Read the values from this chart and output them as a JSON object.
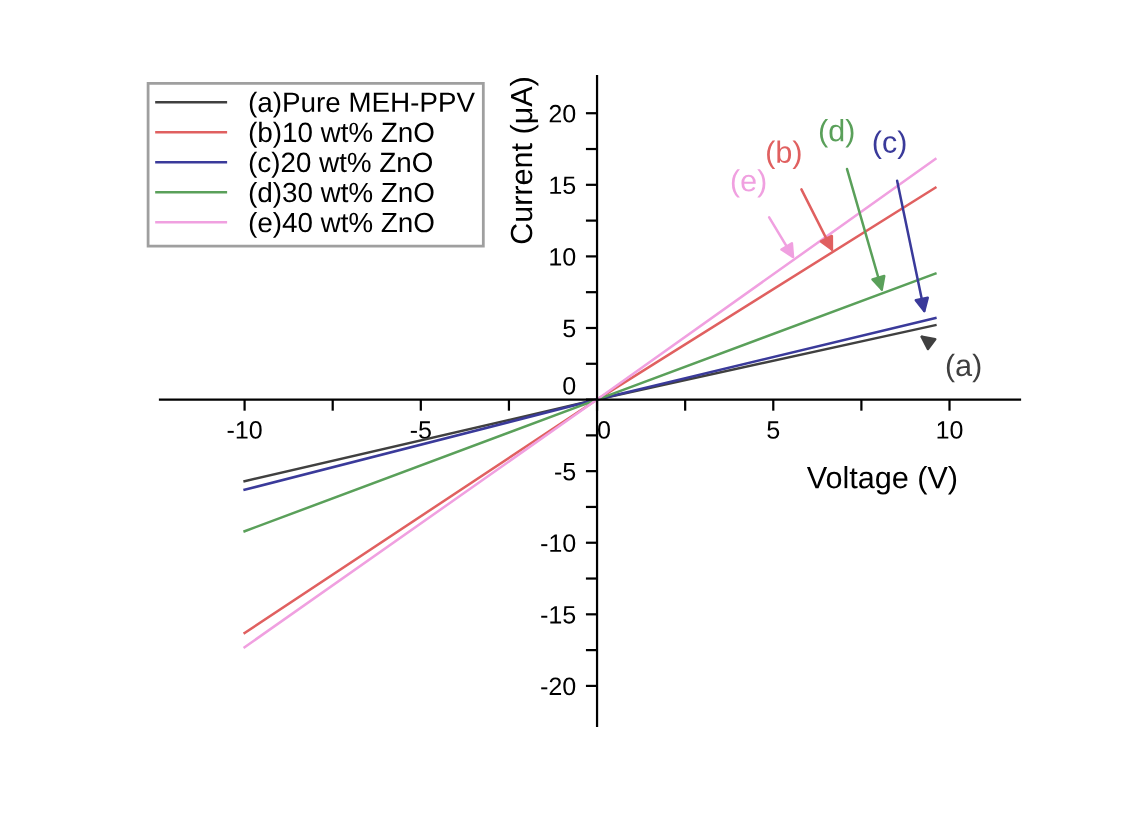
{
  "chart_data": {
    "type": "line",
    "xlabel": "Voltage (V)",
    "ylabel": "Current (μA)",
    "xlim": [
      -12.4,
      12
    ],
    "ylim": [
      -22.8,
      22.6
    ],
    "xticks": [
      -10,
      {
        "value": -7.5,
        "label": null
      },
      -5,
      {
        "value": -2.5,
        "label": null
      },
      0,
      {
        "value": 2.5,
        "label": null
      },
      5,
      {
        "value": 7.5,
        "label": null
      },
      10
    ],
    "yticks": [
      -20,
      {
        "value": -17.5,
        "label": null
      },
      -15,
      {
        "value": -12.5,
        "label": null
      },
      -10,
      {
        "value": -7.5,
        "label": null
      },
      -5,
      {
        "value": -2.5,
        "label": null
      },
      0,
      {
        "value": 2.5,
        "label": null
      },
      5,
      {
        "value": 7.5,
        "label": null
      },
      10,
      {
        "value": 12.5,
        "label": null
      },
      15,
      {
        "value": 17.5,
        "label": null
      },
      20
    ],
    "x": [
      -10,
      0,
      9.6
    ],
    "series": [
      {
        "name": "(a)Pure MEH-PPV",
        "color": "#404040",
        "values": [
          -5.7,
          0,
          5.2
        ]
      },
      {
        "name": "(b)10 wt% ZnO",
        "color": "#e06060",
        "values": [
          -16.3,
          0,
          14.8
        ]
      },
      {
        "name": "(c)20 wt% ZnO",
        "color": "#3a3a9a",
        "values": [
          -6.3,
          0,
          5.7
        ]
      },
      {
        "name": "(d)30 wt% ZnO",
        "color": "#5aa05a",
        "values": [
          -9.2,
          0,
          8.8
        ]
      },
      {
        "name": "(e)40 wt% ZnO",
        "color": "#f0a0e0",
        "values": [
          -17.3,
          0,
          16.8
        ]
      }
    ],
    "annotations": [
      {
        "text": "(a)",
        "x": 9.15,
        "y": 4.5
      },
      {
        "text": "(b)",
        "x": 6.7,
        "y": 10.3
      },
      {
        "text": "(c)",
        "x": 9.3,
        "y": 6.0
      },
      {
        "text": "(d)",
        "x": 8.1,
        "y": 7.5
      },
      {
        "text": "(e)",
        "x": 5.6,
        "y": 9.8
      }
    ],
    "legend": "top left",
    "grid": false,
    "marker": "none",
    "line_style": "solid"
  }
}
